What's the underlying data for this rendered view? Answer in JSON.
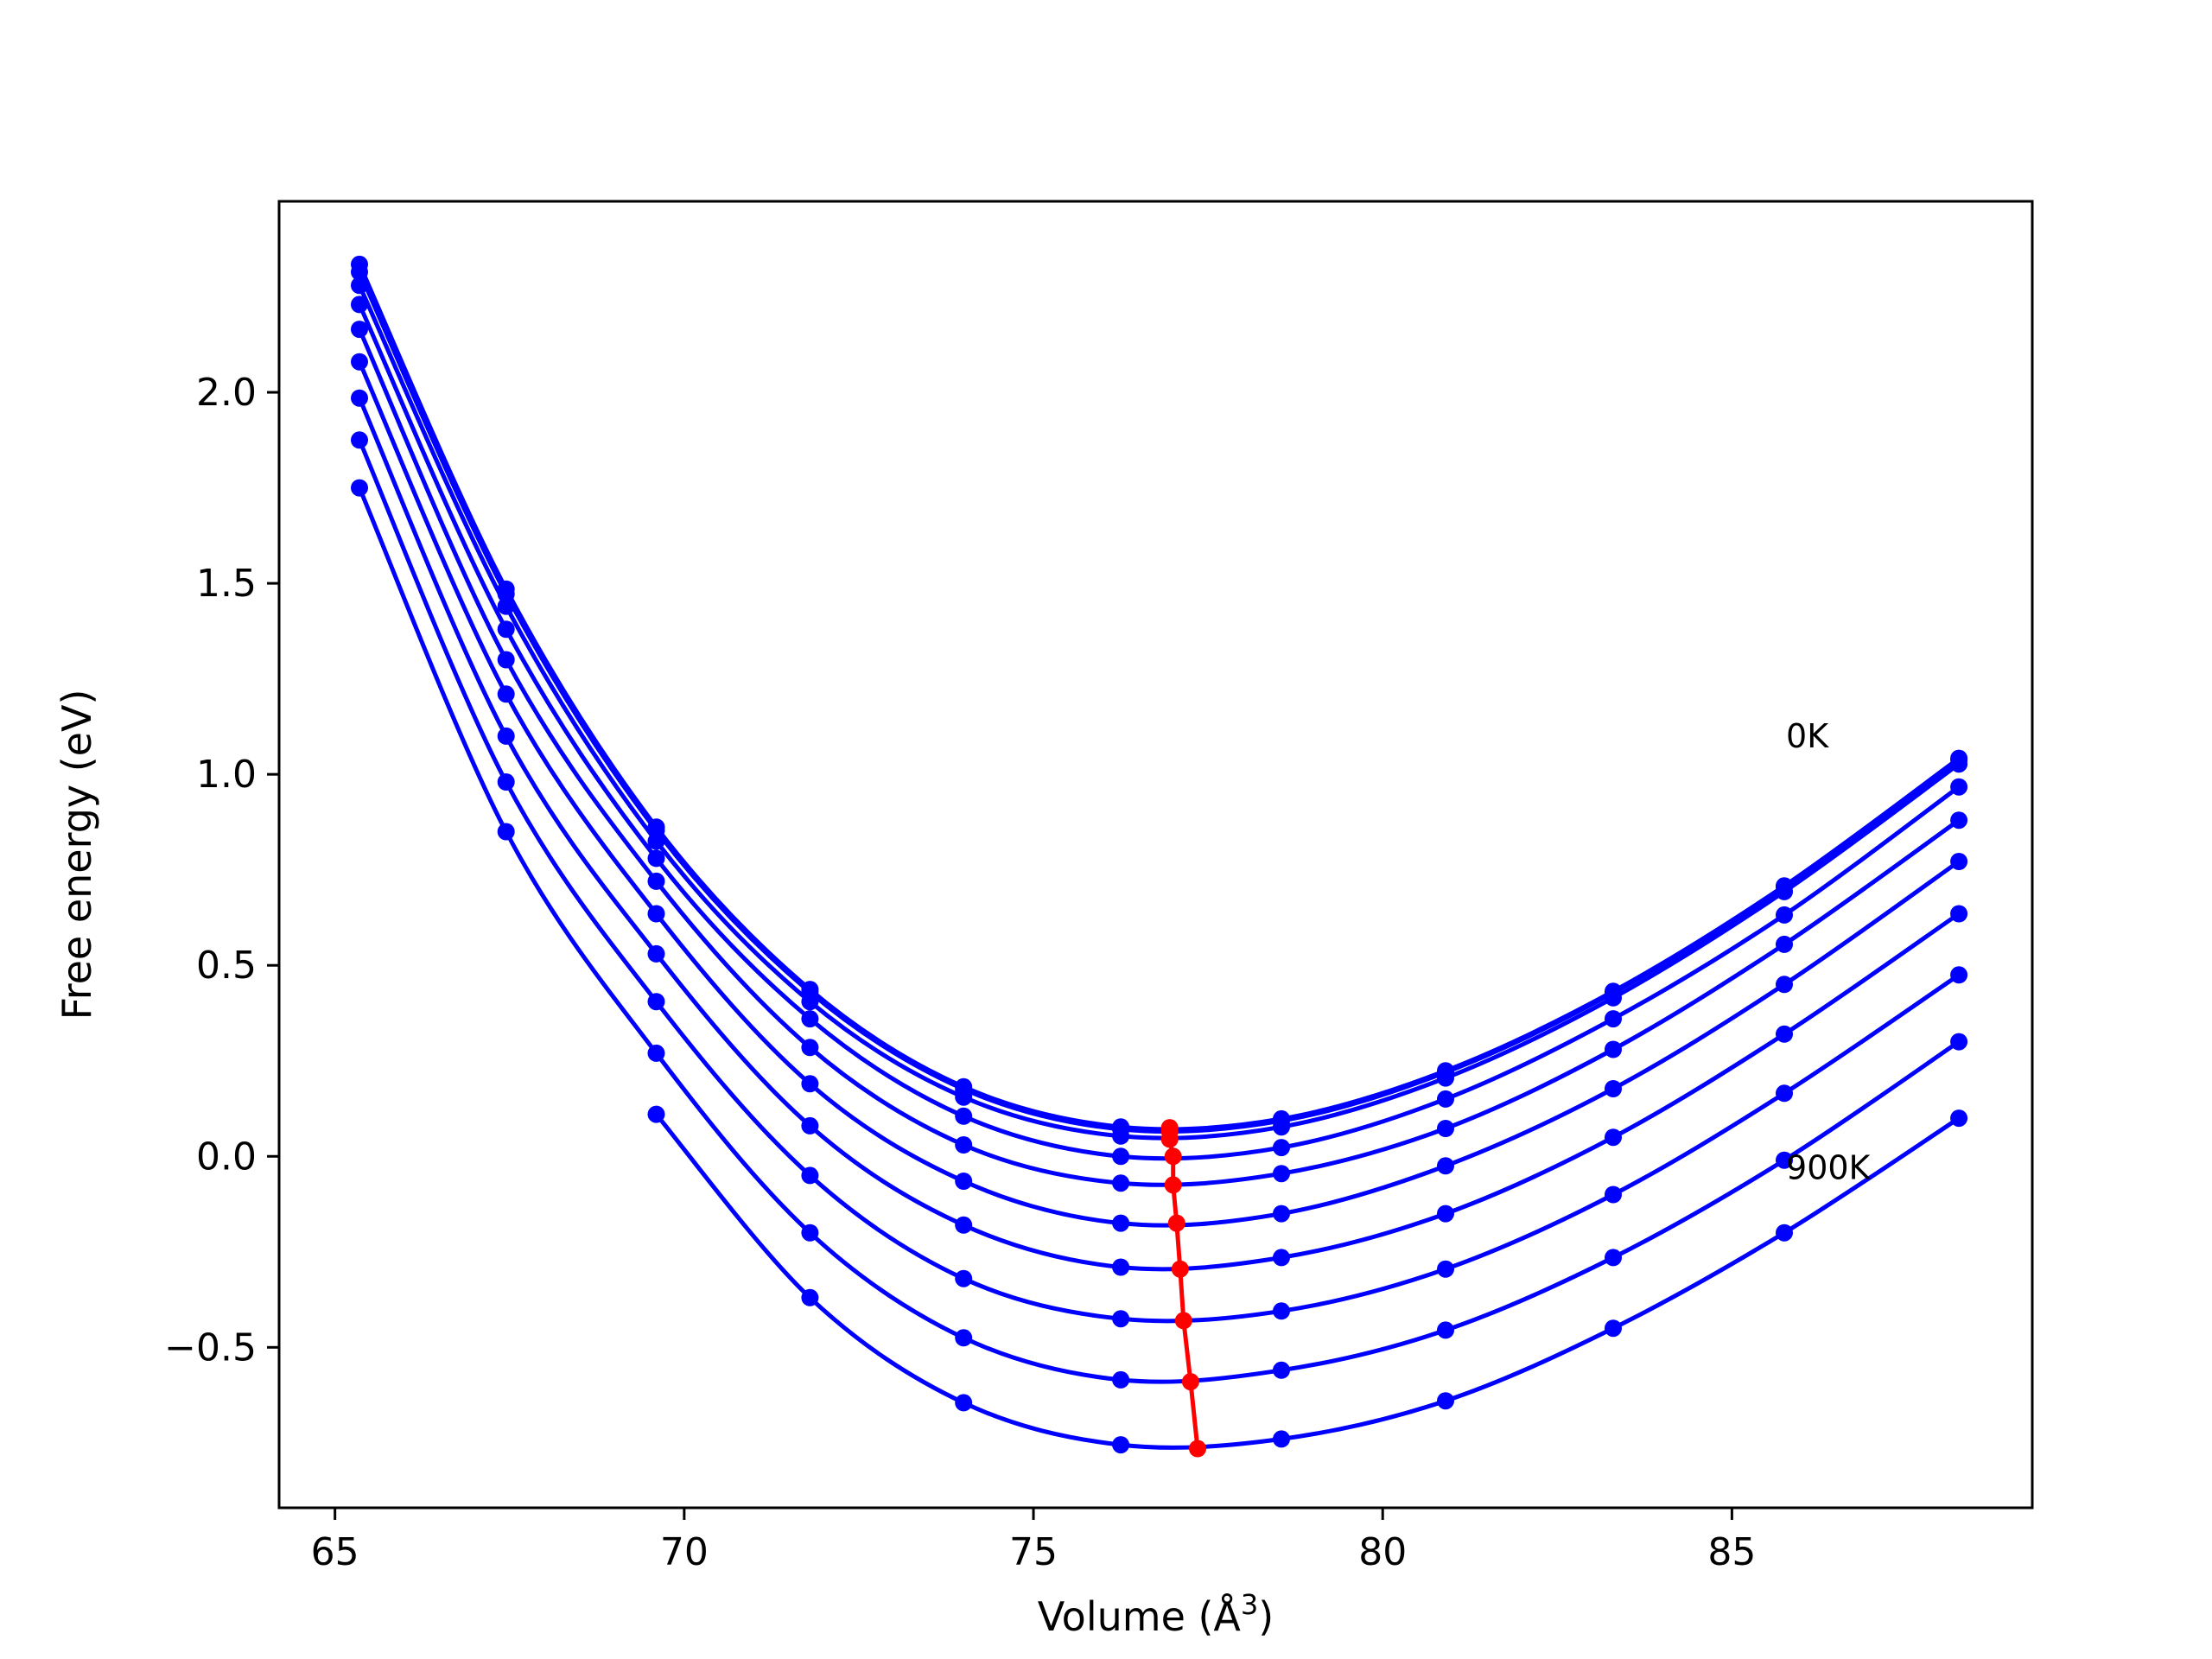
{
  "chart_data": {
    "type": "line",
    "title": "",
    "xlabel": "Volume (Å",
    "xlabel_sup": "3",
    "xlabel_end": ")",
    "ylabel": "Free energy (eV)",
    "xlim": [
      64.2,
      89.3
    ],
    "ylim": [
      -0.92,
      2.5
    ],
    "xticks": [
      65,
      70,
      75,
      80,
      85
    ],
    "yticks": [
      -0.5,
      0.0,
      0.5,
      1.0,
      1.5,
      2.0
    ],
    "ytick_labels": [
      "−0.5",
      "0.0",
      "0.5",
      "1.0",
      "1.5",
      "2.0"
    ],
    "x": [
      65.35,
      67.45,
      69.6,
      71.8,
      74.0,
      76.25,
      78.55,
      80.9,
      83.3,
      85.75,
      88.25
    ],
    "annotations": [
      {
        "text": "0K",
        "x": 85.75,
        "y": 1.1
      },
      {
        "text": "900K",
        "x": 85.75,
        "y": -0.03
      }
    ],
    "series_color": "#0000ff",
    "min_color": "#ff0000",
    "series": [
      {
        "values": [
          2.335,
          1.485,
          0.862,
          0.437,
          0.182,
          0.077,
          0.098,
          0.224,
          0.432,
          0.708,
          1.042
        ]
      },
      {
        "values": [
          2.315,
          1.472,
          0.853,
          0.43,
          0.176,
          0.071,
          0.093,
          0.22,
          0.428,
          0.705,
          1.038
        ]
      },
      {
        "values": [
          2.28,
          1.44,
          0.825,
          0.405,
          0.155,
          0.053,
          0.077,
          0.205,
          0.415,
          0.693,
          1.027
        ]
      },
      {
        "values": [
          2.23,
          1.38,
          0.78,
          0.36,
          0.105,
          0.0,
          0.023,
          0.15,
          0.36,
          0.632,
          0.967
        ]
      },
      {
        "values": [
          2.165,
          1.3,
          0.72,
          0.285,
          0.03,
          -0.07,
          -0.045,
          0.073,
          0.28,
          0.555,
          0.88
        ]
      },
      {
        "values": [
          2.08,
          1.21,
          0.635,
          0.19,
          -0.065,
          -0.175,
          -0.15,
          -0.025,
          0.177,
          0.45,
          0.772
        ]
      },
      {
        "values": [
          1.985,
          1.1,
          0.53,
          0.08,
          -0.18,
          -0.29,
          -0.265,
          -0.15,
          0.05,
          0.32,
          0.635
        ]
      },
      {
        "values": [
          1.875,
          0.98,
          0.405,
          -0.05,
          -0.32,
          -0.425,
          -0.405,
          -0.295,
          -0.1,
          0.165,
          0.475
        ]
      },
      {
        "values": [
          1.75,
          0.85,
          0.27,
          -0.2,
          -0.475,
          -0.585,
          -0.56,
          -0.455,
          -0.265,
          -0.01,
          0.3
        ]
      },
      {
        "values": [
          null,
          null,
          0.11,
          -0.37,
          -0.645,
          -0.755,
          -0.74,
          -0.64,
          -0.45,
          -0.2,
          0.1
        ]
      }
    ],
    "minima": [
      {
        "x": 76.95,
        "y": 0.075
      },
      {
        "x": 76.95,
        "y": 0.065
      },
      {
        "x": 76.95,
        "y": 0.045
      },
      {
        "x": 77.0,
        "y": 0.0
      },
      {
        "x": 77.0,
        "y": -0.075
      },
      {
        "x": 77.05,
        "y": -0.175
      },
      {
        "x": 77.1,
        "y": -0.295
      },
      {
        "x": 77.15,
        "y": -0.43
      },
      {
        "x": 77.25,
        "y": -0.59
      },
      {
        "x": 77.35,
        "y": -0.765
      }
    ]
  }
}
